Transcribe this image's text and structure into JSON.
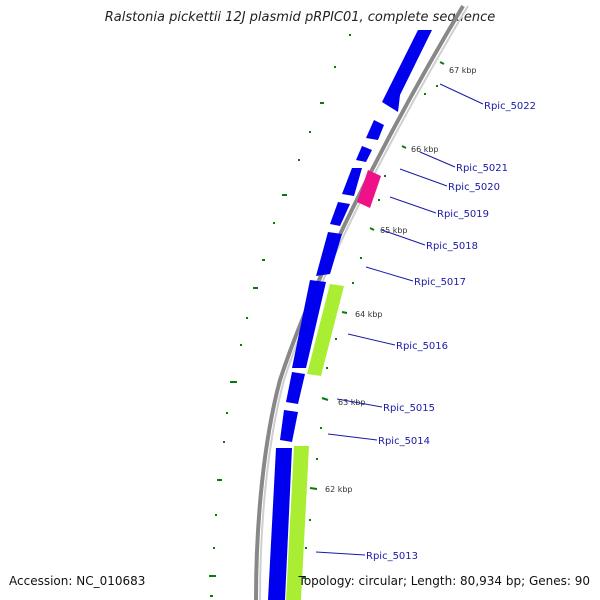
{
  "title": "Ralstonia pickettii 12J plasmid pRPIC01, complete sequence",
  "accession_text": "Accession: NC_010683",
  "summary_text": "Topology: circular; Length: 80,934 bp; Genes: 90",
  "colors": {
    "backbone": "#888888",
    "cds": "#0000ee",
    "rna_pink": "#ee1188",
    "green": "#aaee33",
    "tick": "#0a7a0a",
    "label": "#1a1aa6"
  },
  "kbp_ticks": [
    "67 kbp",
    "66 kbp",
    "65 kbp",
    "64 kbp",
    "63 kbp",
    "62 kbp"
  ],
  "genes": [
    {
      "name": "Rpic_5022"
    },
    {
      "name": "Rpic_5021"
    },
    {
      "name": "Rpic_5020"
    },
    {
      "name": "Rpic_5019"
    },
    {
      "name": "Rpic_5018"
    },
    {
      "name": "Rpic_5017"
    },
    {
      "name": "Rpic_5016"
    },
    {
      "name": "Rpic_5015"
    },
    {
      "name": "Rpic_5014"
    },
    {
      "name": "Rpic_5013"
    }
  ]
}
